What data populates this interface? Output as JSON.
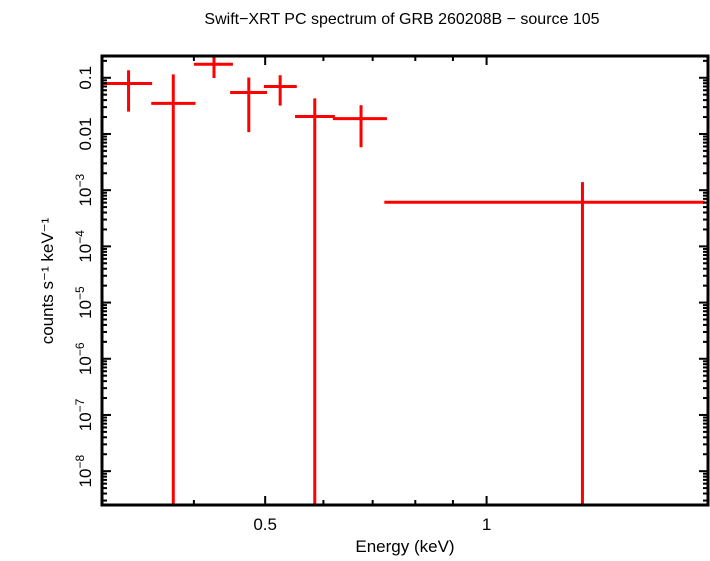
{
  "chart_data": {
    "type": "scatter",
    "title": "Swift−XRT PC spectrum of GRB 260208B − source 105",
    "xlabel": "Energy (keV)",
    "ylabel": "counts s⁻¹ keV⁻¹",
    "xscale": "log",
    "yscale": "log",
    "xlim": [
      0.3,
      2.0
    ],
    "ylim": [
      2.5e-09,
      0.244
    ],
    "grid": false,
    "color": "#ff0000",
    "x_ticks": [
      {
        "value": 0.5,
        "label": "0.5"
      },
      {
        "value": 1,
        "label": "1"
      }
    ],
    "y_ticks": [
      {
        "value": 0.1,
        "base": "0.1",
        "exp": ""
      },
      {
        "value": 0.01,
        "base": "0.01",
        "exp": ""
      },
      {
        "value": 0.001,
        "base": "10",
        "exp": "−3"
      },
      {
        "value": 0.0001,
        "base": "10",
        "exp": "−4"
      },
      {
        "value": 1e-05,
        "base": "10",
        "exp": "−5"
      },
      {
        "value": 1e-06,
        "base": "10",
        "exp": "−6"
      },
      {
        "value": 1e-07,
        "base": "10",
        "exp": "−7"
      },
      {
        "value": 1e-08,
        "base": "10",
        "exp": "−8"
      }
    ],
    "points": [
      {
        "x": 0.326,
        "x_lo": 0.3,
        "x_hi": 0.351,
        "y": 0.079,
        "y_lo": 0.025,
        "y_hi": 0.136
      },
      {
        "x": 0.375,
        "x_lo": 0.35,
        "x_hi": 0.402,
        "y": 0.035,
        "y_lo": null,
        "y_hi": 0.115
      },
      {
        "x": 0.426,
        "x_lo": 0.4,
        "x_hi": 0.452,
        "y": 0.174,
        "y_lo": 0.099,
        "y_hi": 0.244
      },
      {
        "x": 0.475,
        "x_lo": 0.448,
        "x_hi": 0.503,
        "y": 0.0546,
        "y_lo": 0.0108,
        "y_hi": 0.101
      },
      {
        "x": 0.524,
        "x_lo": 0.498,
        "x_hi": 0.552,
        "y": 0.07,
        "y_lo": 0.032,
        "y_hi": 0.111
      },
      {
        "x": 0.584,
        "x_lo": 0.549,
        "x_hi": 0.622,
        "y": 0.0205,
        "y_lo": null,
        "y_hi": 0.043
      },
      {
        "x": 0.675,
        "x_lo": 0.618,
        "x_hi": 0.732,
        "y": 0.0188,
        "y_lo": 0.0058,
        "y_hi": 0.0325
      },
      {
        "x": 1.35,
        "x_lo": 0.726,
        "x_hi": 1.98,
        "y": 0.00061,
        "y_lo": null,
        "y_hi": 0.00139
      }
    ]
  }
}
